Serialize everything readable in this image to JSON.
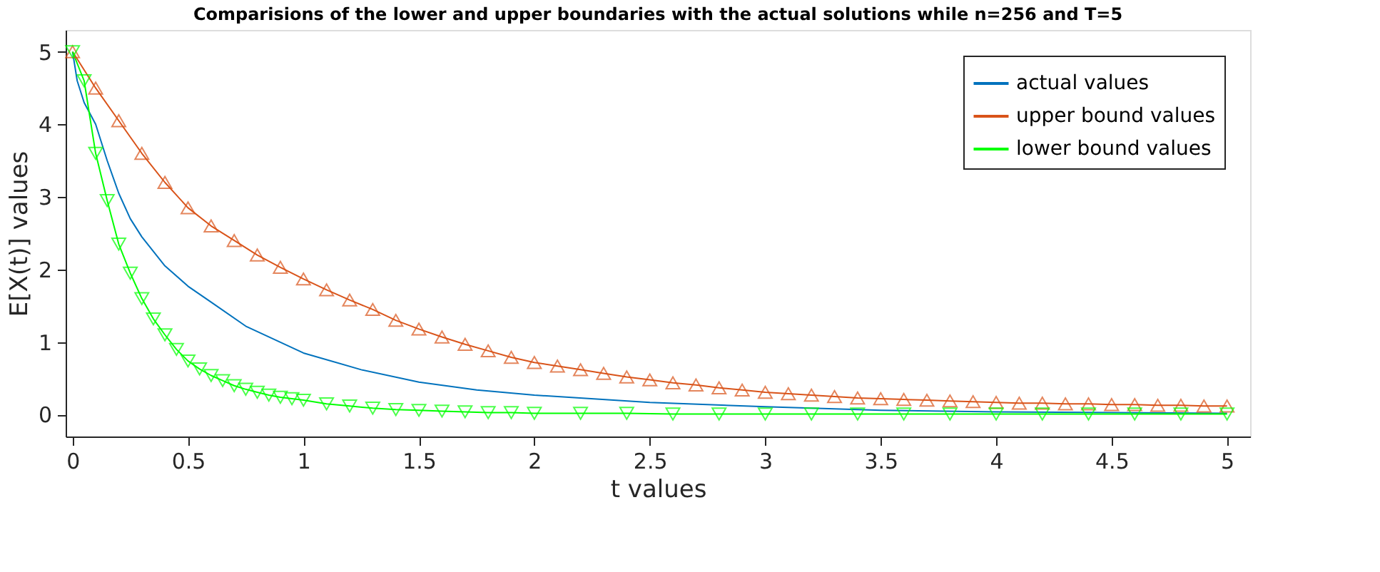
{
  "chart_data": {
    "type": "line",
    "title": "Comparisions of the lower and upper boundaries with the actual solutions while n=256 and T=5",
    "xlabel": "t values",
    "ylabel": "E[X(t)] values",
    "xlim": [
      -0.03,
      5.1
    ],
    "ylim": [
      -0.3,
      5.3
    ],
    "xticks": [
      0,
      0.5,
      1,
      1.5,
      2,
      2.5,
      3,
      3.5,
      4,
      4.5,
      5
    ],
    "yticks": [
      0,
      1,
      2,
      3,
      4,
      5
    ],
    "grid": false,
    "legend": "top right",
    "series": [
      {
        "name": "actual values",
        "color": "#0072bd",
        "marker": "none",
        "x": [
          0,
          0.02,
          0.05,
          0.1,
          0.15,
          0.2,
          0.25,
          0.3,
          0.4,
          0.5,
          0.6,
          0.75,
          1,
          1.25,
          1.5,
          1.75,
          2,
          2.5,
          3,
          3.5,
          4,
          4.5,
          5
        ],
        "values": [
          5,
          4.6,
          4.3,
          4.0,
          3.5,
          3.05,
          2.7,
          2.45,
          2.05,
          1.77,
          1.55,
          1.22,
          0.85,
          0.62,
          0.45,
          0.34,
          0.27,
          0.17,
          0.11,
          0.06,
          0.04,
          0.03,
          0.02
        ]
      },
      {
        "name": "upper bound values",
        "color": "#d95319",
        "marker": "triangle",
        "x": [
          0,
          0.1,
          0.2,
          0.3,
          0.4,
          0.5,
          0.6,
          0.7,
          0.8,
          0.9,
          1,
          1.1,
          1.2,
          1.3,
          1.4,
          1.5,
          1.6,
          1.7,
          1.8,
          1.9,
          2,
          2.1,
          2.2,
          2.3,
          2.4,
          2.5,
          2.6,
          2.7,
          2.8,
          2.9,
          3,
          3.1,
          3.2,
          3.3,
          3.4,
          3.5,
          3.6,
          3.7,
          3.8,
          3.9,
          4,
          4.1,
          4.2,
          4.3,
          4.4,
          4.5,
          4.6,
          4.7,
          4.8,
          4.9,
          5
        ],
        "values": [
          5,
          4.5,
          4.05,
          3.6,
          3.2,
          2.85,
          2.6,
          2.4,
          2.2,
          2.03,
          1.87,
          1.72,
          1.58,
          1.45,
          1.3,
          1.18,
          1.07,
          0.97,
          0.88,
          0.79,
          0.72,
          0.67,
          0.62,
          0.57,
          0.52,
          0.48,
          0.44,
          0.41,
          0.37,
          0.34,
          0.31,
          0.29,
          0.27,
          0.25,
          0.23,
          0.22,
          0.21,
          0.2,
          0.19,
          0.18,
          0.17,
          0.16,
          0.16,
          0.15,
          0.15,
          0.14,
          0.14,
          0.13,
          0.13,
          0.12,
          0.12
        ]
      },
      {
        "name": "lower bound values",
        "color": "#00ff00",
        "marker": "triangle-down",
        "x": [
          0,
          0.05,
          0.1,
          0.15,
          0.2,
          0.25,
          0.3,
          0.35,
          0.4,
          0.45,
          0.5,
          0.55,
          0.6,
          0.65,
          0.7,
          0.75,
          0.8,
          0.85,
          0.9,
          0.95,
          1,
          1.1,
          1.2,
          1.3,
          1.4,
          1.5,
          1.6,
          1.7,
          1.8,
          1.9,
          2,
          2.2,
          2.4,
          2.6,
          2.8,
          3,
          3.2,
          3.4,
          3.6,
          3.8,
          4,
          4.2,
          4.4,
          4.6,
          4.8,
          5
        ],
        "values": [
          5,
          4.6,
          3.6,
          2.95,
          2.35,
          1.95,
          1.6,
          1.32,
          1.1,
          0.9,
          0.74,
          0.63,
          0.54,
          0.47,
          0.4,
          0.35,
          0.31,
          0.27,
          0.24,
          0.22,
          0.2,
          0.15,
          0.12,
          0.09,
          0.07,
          0.06,
          0.05,
          0.04,
          0.03,
          0.03,
          0.02,
          0.02,
          0.02,
          0.01,
          0.01,
          0.01,
          0.01,
          0.01,
          0.01,
          0.01,
          0.01,
          0.01,
          0.01,
          0.01,
          0.01,
          0.01
        ]
      }
    ]
  }
}
